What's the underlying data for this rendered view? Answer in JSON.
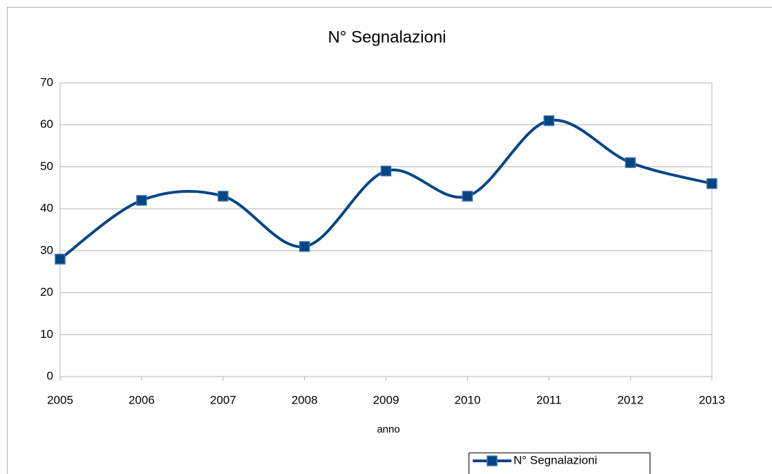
{
  "chart_data": {
    "type": "line",
    "title": "N° Segnalazioni",
    "x_label": "anno",
    "categories": [
      "2005",
      "2006",
      "2007",
      "2008",
      "2009",
      "2010",
      "2011",
      "2012",
      "2013"
    ],
    "series": [
      {
        "name": "N° Segnalazioni",
        "color": "#004586",
        "values": [
          28,
          42,
          43,
          31,
          49,
          43,
          61,
          51,
          46
        ]
      }
    ],
    "ylim": [
      0,
      70
    ],
    "yticks": [
      0,
      10,
      20,
      30,
      40,
      50,
      60,
      70
    ],
    "grid": true,
    "smooth": true,
    "legend": "bottom"
  }
}
